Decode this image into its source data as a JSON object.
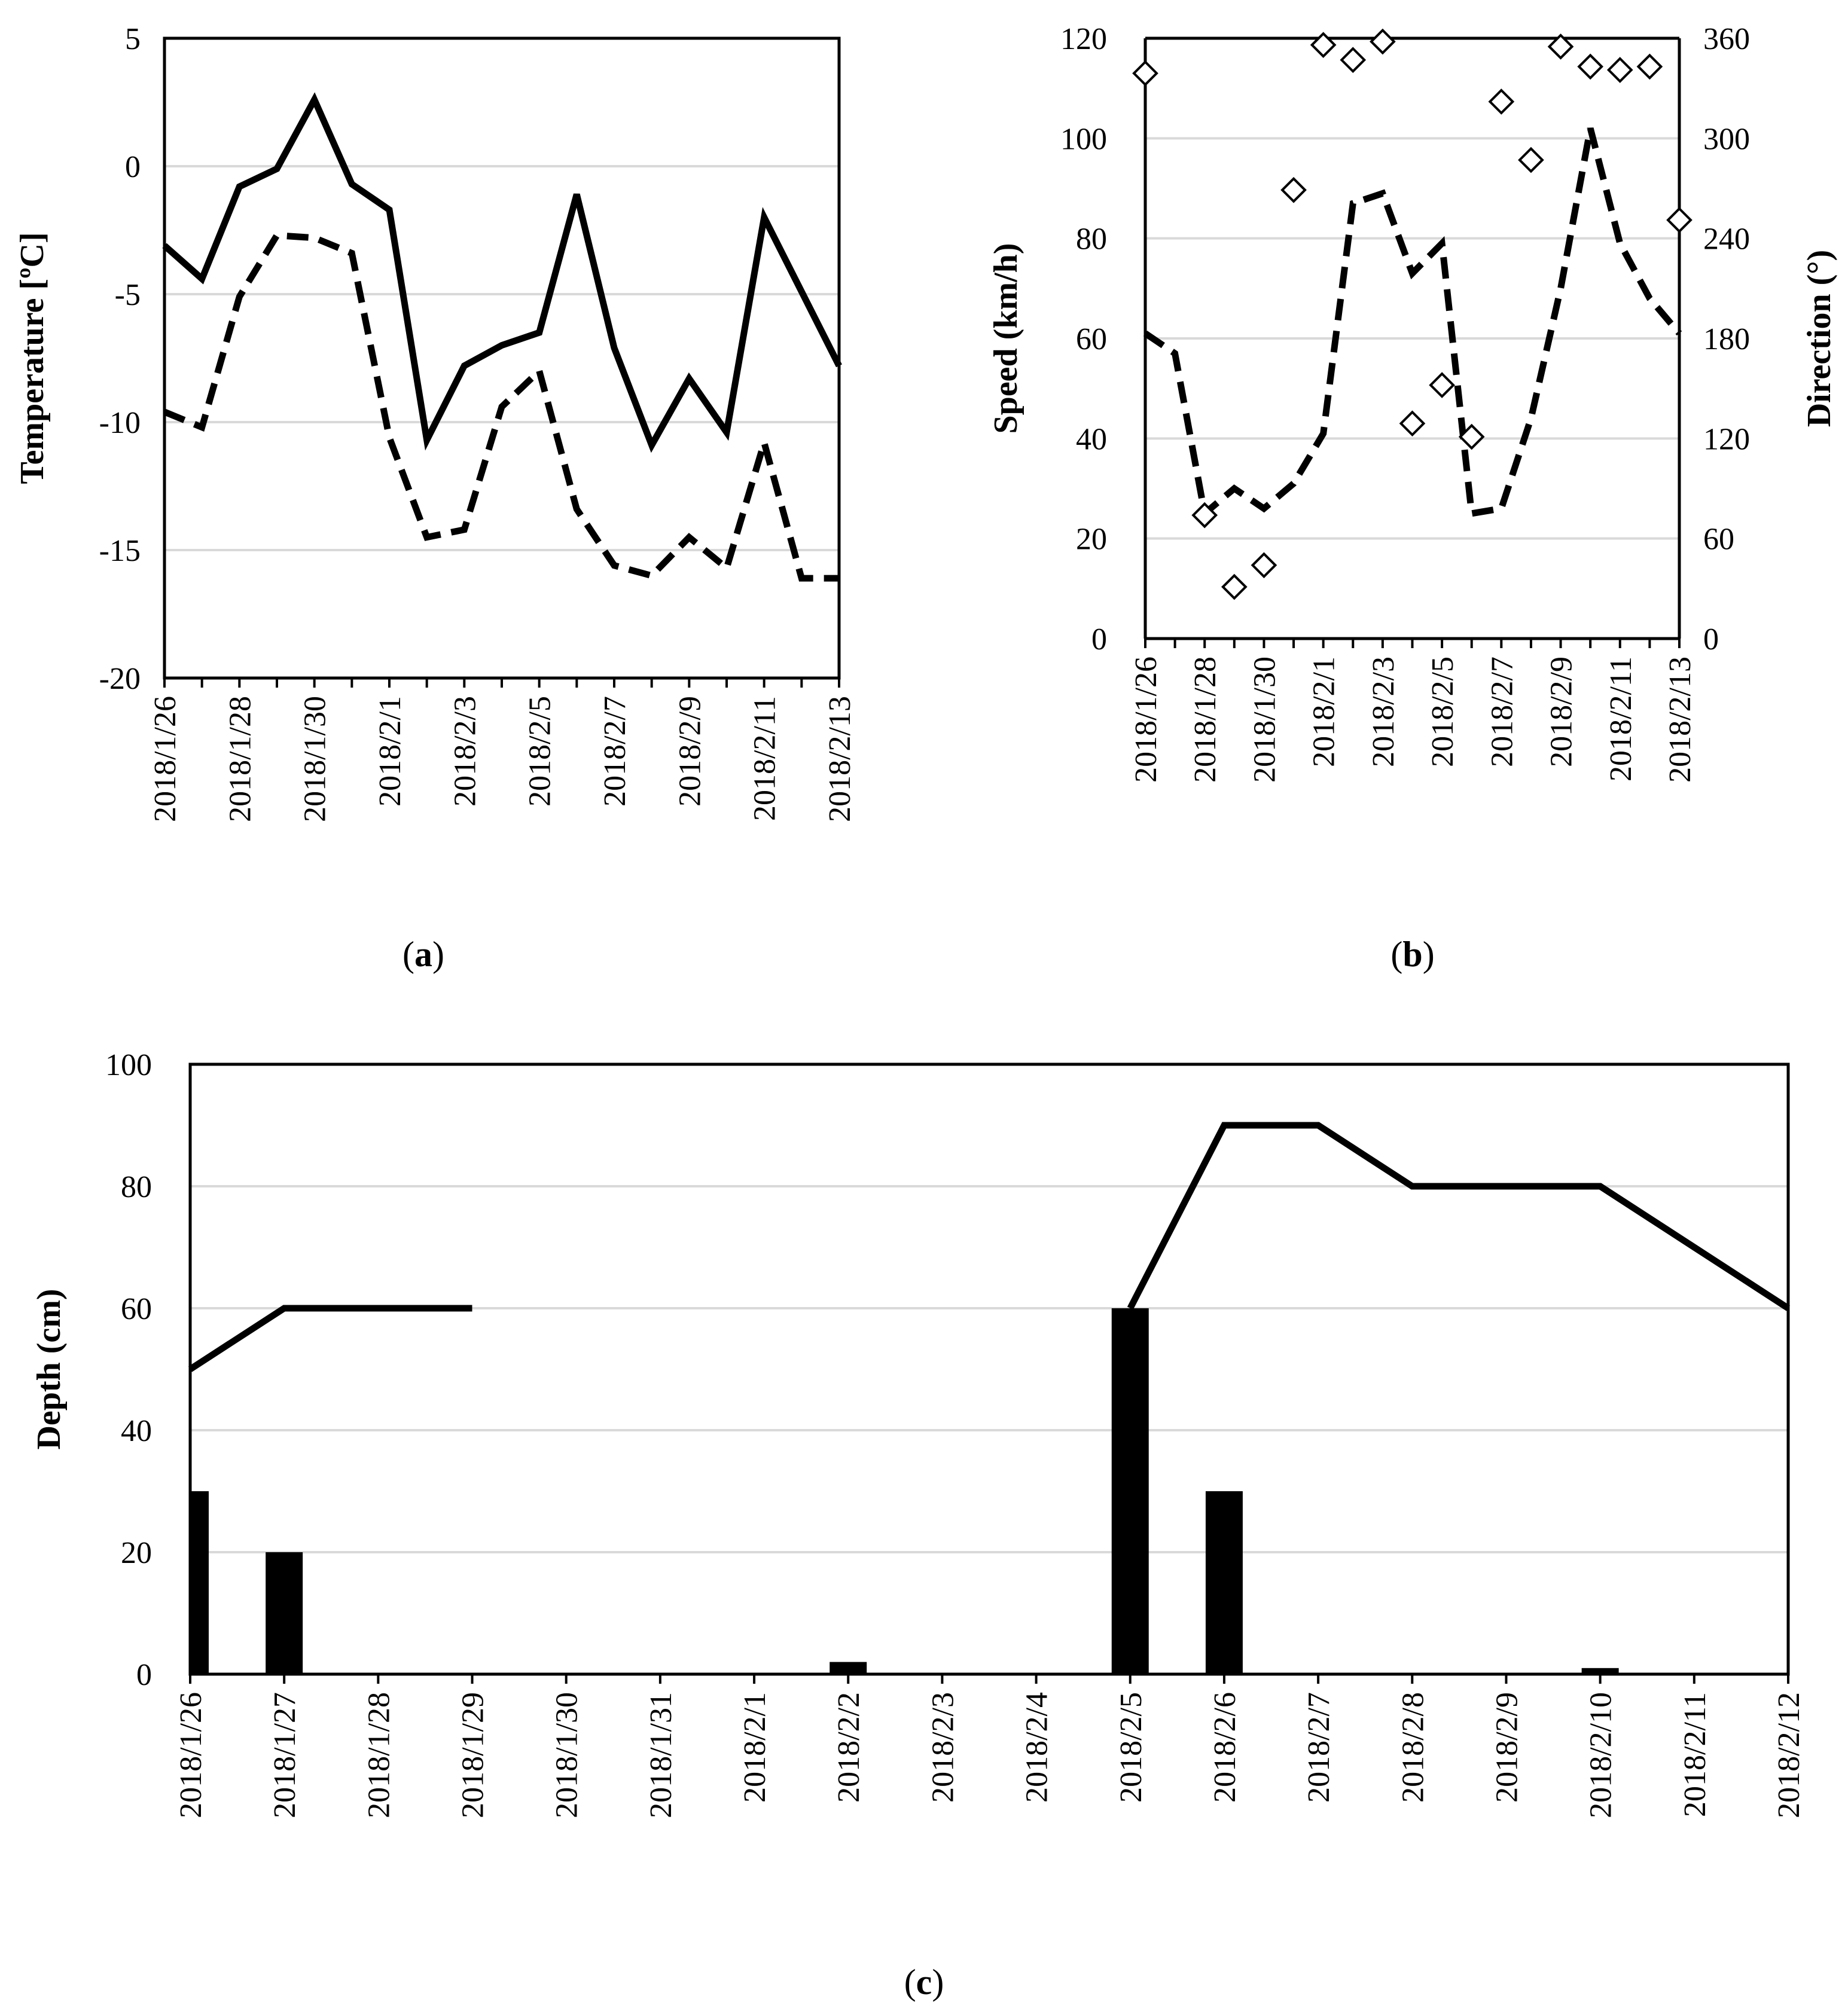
{
  "chart_data": [
    {
      "id": "a",
      "panel_label": "a",
      "type": "line",
      "ylabel": "Temperature [ºC]",
      "ylim": [
        -20,
        5
      ],
      "yticks": [
        5,
        0,
        -5,
        -10,
        -15,
        -20
      ],
      "grid": true,
      "x": [
        "2018/1/26",
        "2018/1/27",
        "2018/1/28",
        "2018/1/29",
        "2018/1/30",
        "2018/1/31",
        "2018/2/1",
        "2018/2/2",
        "2018/2/3",
        "2018/2/4",
        "2018/2/5",
        "2018/2/6",
        "2018/2/7",
        "2018/2/8",
        "2018/2/9",
        "2018/2/10",
        "2018/2/11",
        "2018/2/12",
        "2018/2/13"
      ],
      "xtick_labels": [
        "2018/1/26",
        "2018/1/28",
        "2018/1/30",
        "2018/2/1",
        "2018/2/3",
        "2018/2/5",
        "2018/2/7",
        "2018/2/9",
        "2018/2/11",
        "2018/2/13"
      ],
      "series": [
        {
          "name": "Temperature (solid)",
          "style": "solid",
          "values": [
            -3.1,
            -4.4,
            -0.8,
            -0.1,
            2.6,
            -0.7,
            -1.7,
            -10.7,
            -7.8,
            -7.0,
            -6.5,
            -1.1,
            -7.1,
            -10.9,
            -8.3,
            -10.4,
            -2.0,
            -4.9,
            -7.8
          ]
        },
        {
          "name": "Temperature (dashed)",
          "style": "dashed",
          "values": [
            -9.6,
            -10.2,
            -5.1,
            -2.7,
            -2.8,
            -3.4,
            -10.6,
            -14.5,
            -14.2,
            -9.4,
            -8.0,
            -13.4,
            -15.6,
            -16.0,
            -14.5,
            -15.7,
            -10.8,
            -16.1,
            -16.1
          ]
        }
      ]
    },
    {
      "id": "b",
      "panel_label": "b",
      "type": "line+scatter",
      "ylabel": "Speed (km/h)",
      "y2label": "Direction (°)",
      "ylim": [
        0,
        120
      ],
      "y2lim": [
        0,
        360
      ],
      "yticks": [
        120,
        100,
        80,
        60,
        40,
        20,
        0
      ],
      "y2ticks": [
        360,
        300,
        240,
        180,
        120,
        60,
        0
      ],
      "grid": true,
      "x": [
        "2018/1/26",
        "2018/1/27",
        "2018/1/28",
        "2018/1/29",
        "2018/1/30",
        "2018/1/31",
        "2018/2/1",
        "2018/2/2",
        "2018/2/3",
        "2018/2/4",
        "2018/2/5",
        "2018/2/6",
        "2018/2/7",
        "2018/2/8",
        "2018/2/9",
        "2018/2/10",
        "2018/2/11",
        "2018/2/12",
        "2018/2/13"
      ],
      "xtick_labels": [
        "2018/1/26",
        "2018/1/28",
        "2018/1/30",
        "2018/2/1",
        "2018/2/3",
        "2018/2/5",
        "2018/2/7",
        "2018/2/9",
        "2018/2/11",
        "2018/2/13"
      ],
      "series": [
        {
          "name": "Speed",
          "style": "dashed",
          "axis": "left",
          "values": [
            61,
            57,
            25,
            30,
            26,
            31,
            41,
            87,
            89,
            73,
            79,
            25,
            26,
            44,
            70,
            102,
            79,
            68,
            61
          ]
        },
        {
          "name": "Direction",
          "style": "diamond",
          "axis": "right",
          "values": [
            339,
            null,
            74,
            31,
            44,
            269,
            356,
            347,
            358,
            129,
            152,
            121,
            322,
            287,
            355,
            343,
            341,
            343,
            251
          ]
        }
      ]
    },
    {
      "id": "c",
      "panel_label": "c",
      "type": "bar+line",
      "ylabel": "Depth (cm)",
      "ylim": [
        0,
        100
      ],
      "yticks": [
        100,
        80,
        60,
        40,
        20,
        0
      ],
      "grid": true,
      "categories": [
        "2018/1/26",
        "2018/1/27",
        "2018/1/28",
        "2018/1/29",
        "2018/1/30",
        "2018/1/31",
        "2018/2/1",
        "2018/2/2",
        "2018/2/3",
        "2018/2/4",
        "2018/2/5",
        "2018/2/6",
        "2018/2/7",
        "2018/2/8",
        "2018/2/9",
        "2018/2/10",
        "2018/2/11",
        "2018/2/12"
      ],
      "series": [
        {
          "name": "Bars",
          "style": "bar",
          "values": [
            30,
            20,
            0,
            0,
            0,
            0,
            0,
            2,
            0,
            0,
            60,
            30,
            0,
            0,
            0,
            1,
            0,
            0
          ]
        },
        {
          "name": "Depth line",
          "style": "solid",
          "values": [
            50,
            60,
            60,
            60,
            null,
            null,
            null,
            null,
            null,
            null,
            60,
            90,
            90,
            80,
            80,
            80,
            70,
            60
          ]
        }
      ]
    }
  ]
}
